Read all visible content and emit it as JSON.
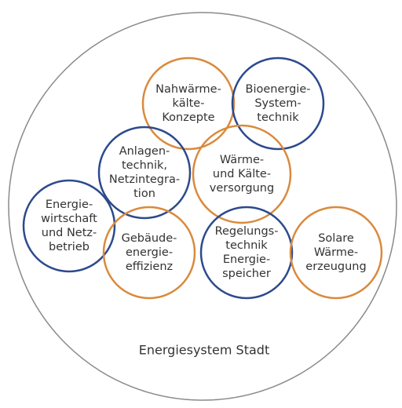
{
  "title": "Energiesystem Stadt",
  "nodes": [
    {
      "lines": [
        "Nahwärme-",
        "kälte-",
        "Konzepte"
      ],
      "color": "#d98a3d"
    },
    {
      "lines": [
        "Bioenergie-",
        "System-",
        "technik"
      ],
      "color": "#2c4a8c"
    },
    {
      "lines": [
        "Anlagen-",
        "technik,",
        "Netzintegra-",
        "tion"
      ],
      "color": "#2c4a8c"
    },
    {
      "lines": [
        "Wärme-",
        "und Kälte-",
        "versorgung"
      ],
      "color": "#d98a3d"
    },
    {
      "lines": [
        "Energie-",
        "wirtschaft",
        "und Netz-",
        "betrieb"
      ],
      "color": "#2c4a8c"
    },
    {
      "lines": [
        "Gebäude-",
        "energie-",
        "effizienz"
      ],
      "color": "#d98a3d"
    },
    {
      "lines": [
        "Regelungs-",
        "technik",
        "Energie-",
        "speicher"
      ],
      "color": "#2c4a8c"
    },
    {
      "lines": [
        "Solare",
        "Wärme-",
        "erzeugung"
      ],
      "color": "#d98a3d"
    }
  ]
}
